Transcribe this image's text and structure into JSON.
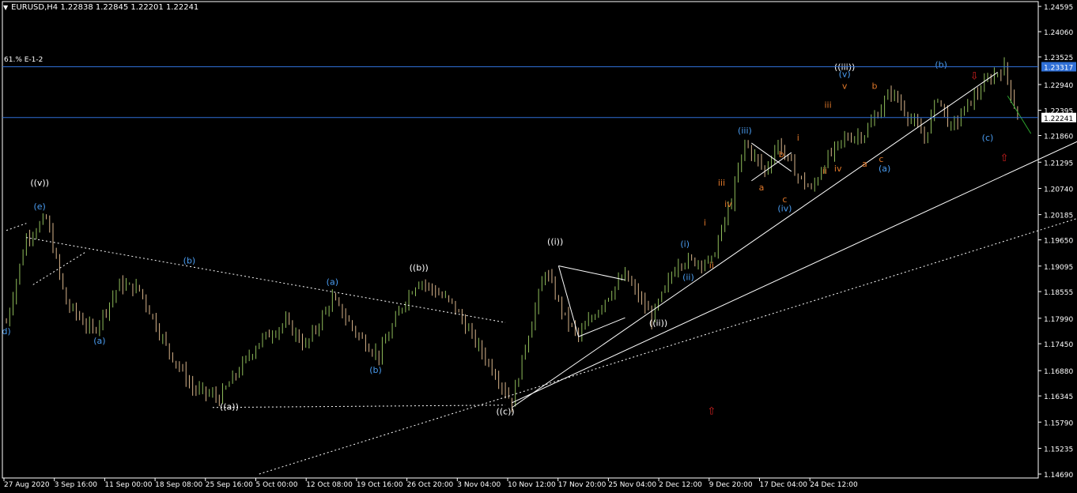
{
  "window": {
    "symbol_line": "EURUSD,H4  1.22838 1.22845 1.22201 1.22241",
    "fibo_label": "61.% E-1-2",
    "menu_icon": "triangle-down-icon"
  },
  "colors": {
    "background": "#000000",
    "bull_candle": "#8fbc5a",
    "bear_candle": "#d8b48a",
    "axis": "#ffffff",
    "hline": "#2f6fd6",
    "price_tag_blue": "#2f6fd6",
    "price_tag_white": "#ffffff",
    "label_white": "#ffffff",
    "label_blue": "#4a9cf0",
    "label_orange": "#e0782a",
    "arrow_red": "#d42020",
    "projection_green": "#2ea62e"
  },
  "chart_data": {
    "type": "candlestick",
    "symbol": "EURUSD",
    "timeframe": "H4",
    "ohlc_current": {
      "open": 1.22838,
      "high": 1.22845,
      "low": 1.22201,
      "close": 1.22241
    },
    "ylim": [
      1.1469,
      1.2463
    ],
    "y_ticks": [
      "1.24595",
      "1.24060",
      "1.23525",
      "1.22940",
      "1.22395",
      "1.21860",
      "1.21295",
      "1.20740",
      "1.20185",
      "1.19650",
      "1.19095",
      "1.18555",
      "1.17990",
      "1.17450",
      "1.16880",
      "1.16345",
      "1.15790",
      "1.15235",
      "1.14690"
    ],
    "x_ticks": [
      "27 Aug 2020",
      "3 Sep 16:00",
      "11 Sep 00:00",
      "18 Sep 08:00",
      "25 Sep 16:00",
      "5 Oct 00:00",
      "12 Oct 08:00",
      "19 Oct 16:00",
      "26 Oct 20:00",
      "3 Nov 04:00",
      "10 Nov 12:00",
      "17 Nov 20:00",
      "25 Nov 04:00",
      "2 Dec 12:00",
      "9 Dec 20:00",
      "17 Dec 04:00",
      "24 Dec 12:00"
    ],
    "price_tags": [
      {
        "value": 1.23317,
        "label": "1.23317",
        "style": "blue"
      },
      {
        "value": 1.22241,
        "label": "1.22241",
        "style": "white"
      }
    ],
    "hlines": [
      {
        "value": 1.23317
      },
      {
        "value": 1.22241
      }
    ],
    "price_path": [
      [
        1.179,
        0
      ],
      [
        1.197,
        6
      ],
      [
        1.201,
        12
      ],
      [
        1.183,
        18
      ],
      [
        1.177,
        26
      ],
      [
        1.187,
        34
      ],
      [
        1.186,
        40
      ],
      [
        1.174,
        48
      ],
      [
        1.165,
        56
      ],
      [
        1.163,
        64
      ],
      [
        1.175,
        76
      ],
      [
        1.179,
        84
      ],
      [
        1.174,
        90
      ],
      [
        1.184,
        98
      ],
      [
        1.176,
        106
      ],
      [
        1.172,
        112
      ],
      [
        1.184,
        120
      ],
      [
        1.188,
        124
      ],
      [
        1.183,
        134
      ],
      [
        1.176,
        140
      ],
      [
        1.167,
        148
      ],
      [
        1.162,
        152
      ],
      [
        1.174,
        156
      ],
      [
        1.19,
        162
      ],
      [
        1.18,
        168
      ],
      [
        1.176,
        172
      ],
      [
        1.184,
        180
      ],
      [
        1.189,
        186
      ],
      [
        1.18,
        194
      ],
      [
        1.192,
        202
      ],
      [
        1.192,
        212
      ],
      [
        1.205,
        218
      ],
      [
        1.217,
        222
      ],
      [
        1.211,
        228
      ],
      [
        1.217,
        232
      ],
      [
        1.21,
        238
      ],
      [
        1.207,
        242
      ],
      [
        1.213,
        246
      ],
      [
        1.218,
        252
      ],
      [
        1.219,
        258
      ],
      [
        1.228,
        266
      ],
      [
        1.222,
        272
      ],
      [
        1.218,
        276
      ],
      [
        1.227,
        280
      ],
      [
        1.22,
        284
      ],
      [
        1.226,
        290
      ],
      [
        1.231,
        296
      ],
      [
        1.233,
        300
      ],
      [
        1.2224,
        304
      ]
    ],
    "trendlines": [
      {
        "style": "dotted",
        "points": [
          [
            "x",
            0
          ],
          [
            1.1985,
            0
          ],
          [
            1.2,
            6
          ]
        ]
      },
      {
        "style": "dotted",
        "points": [
          [
            1.187,
            8
          ],
          [
            1.194,
            24
          ]
        ]
      },
      {
        "style": "dotted",
        "points": [
          [
            1.197,
            6
          ],
          [
            1.179,
            150
          ]
        ]
      },
      {
        "style": "dotted",
        "points": [
          [
            1.161,
            62
          ],
          [
            1.1615,
            150
          ]
        ]
      },
      {
        "style": "dotted",
        "points": [
          [
            1.1469,
            76
          ],
          [
            1.2015,
            324
          ]
        ]
      },
      {
        "style": "solid",
        "points": [
          [
            1.162,
            152
          ],
          [
            1.218,
            324
          ]
        ]
      },
      {
        "style": "solid",
        "points": [
          [
            1.161,
            152
          ],
          [
            1.232,
            298
          ]
        ]
      },
      {
        "style": "solid",
        "points": [
          [
            1.191,
            166
          ],
          [
            1.188,
            186
          ]
        ]
      },
      {
        "style": "solid",
        "points": [
          [
            1.176,
            172
          ],
          [
            1.18,
            186
          ]
        ]
      },
      {
        "style": "solid",
        "points": [
          [
            1.191,
            166
          ],
          [
            1.176,
            172
          ]
        ]
      },
      {
        "style": "solid",
        "points": [
          [
            1.217,
            224
          ],
          [
            1.211,
            236
          ]
        ]
      },
      {
        "style": "solid",
        "points": [
          [
            1.209,
            224
          ],
          [
            1.215,
            236
          ]
        ]
      }
    ],
    "projection": {
      "points": [
        [
          1.227,
          301
        ],
        [
          1.219,
          308
        ]
      ]
    },
    "wave_labels": [
      {
        "text": "((v))",
        "price": 1.208,
        "bar": 10,
        "color": "white"
      },
      {
        "text": "(e)",
        "price": 1.203,
        "bar": 10,
        "color": "blue"
      },
      {
        "text": "d)",
        "price": 1.1765,
        "bar": 0,
        "color": "blue"
      },
      {
        "text": "(a)",
        "price": 1.1745,
        "bar": 28,
        "color": "blue"
      },
      {
        "text": "(b)",
        "price": 1.1915,
        "bar": 55,
        "color": "blue"
      },
      {
        "text": "((a))",
        "price": 1.1605,
        "bar": 67,
        "color": "white"
      },
      {
        "text": "(a)",
        "price": 1.187,
        "bar": 98,
        "color": "blue"
      },
      {
        "text": "(b)",
        "price": 1.1683,
        "bar": 111,
        "color": "blue"
      },
      {
        "text": "((b))",
        "price": 1.19,
        "bar": 124,
        "color": "white"
      },
      {
        "text": "((c))",
        "price": 1.1595,
        "bar": 150,
        "color": "white"
      },
      {
        "text": "((i))",
        "price": 1.1955,
        "bar": 165,
        "color": "white"
      },
      {
        "text": "((ii))",
        "price": 1.1783,
        "bar": 196,
        "color": "white"
      },
      {
        "text": "(i)",
        "price": 1.195,
        "bar": 204,
        "color": "blue"
      },
      {
        "text": "(ii)",
        "price": 1.188,
        "bar": 205,
        "color": "blue"
      },
      {
        "text": "i",
        "price": 1.1995,
        "bar": 210,
        "color": "orange"
      },
      {
        "text": "ii",
        "price": 1.1905,
        "bar": 212,
        "color": "orange"
      },
      {
        "text": "iii",
        "price": 1.208,
        "bar": 215,
        "color": "orange"
      },
      {
        "text": "iv",
        "price": 1.2035,
        "bar": 217,
        "color": "orange"
      },
      {
        "text": "(iii)",
        "price": 1.219,
        "bar": 222,
        "color": "blue"
      },
      {
        "text": "a",
        "price": 1.207,
        "bar": 227,
        "color": "orange"
      },
      {
        "text": "b",
        "price": 1.214,
        "bar": 233,
        "color": "orange"
      },
      {
        "text": "c",
        "price": 1.2045,
        "bar": 234,
        "color": "orange"
      },
      {
        "text": "(iv)",
        "price": 1.2025,
        "bar": 234,
        "color": "blue"
      },
      {
        "text": "i",
        "price": 1.2175,
        "bar": 238,
        "color": "orange"
      },
      {
        "text": "ii",
        "price": 1.2105,
        "bar": 246,
        "color": "orange"
      },
      {
        "text": "iii",
        "price": 1.2245,
        "bar": 247,
        "color": "orange"
      },
      {
        "text": "iv",
        "price": 1.211,
        "bar": 250,
        "color": "orange"
      },
      {
        "text": "((iii))",
        "price": 1.2325,
        "bar": 252,
        "color": "white"
      },
      {
        "text": "(v)",
        "price": 1.231,
        "bar": 252,
        "color": "blue"
      },
      {
        "text": "v",
        "price": 1.2285,
        "bar": 252,
        "color": "orange"
      },
      {
        "text": "a",
        "price": 1.212,
        "bar": 258,
        "color": "orange"
      },
      {
        "text": "b",
        "price": 1.2285,
        "bar": 261,
        "color": "orange"
      },
      {
        "text": "c",
        "price": 1.213,
        "bar": 263,
        "color": "orange"
      },
      {
        "text": "(a)",
        "price": 1.211,
        "bar": 264,
        "color": "blue"
      },
      {
        "text": "(b)",
        "price": 1.233,
        "bar": 281,
        "color": "blue"
      },
      {
        "text": "(c)",
        "price": 1.2175,
        "bar": 295,
        "color": "blue"
      }
    ],
    "arrows": [
      {
        "direction": "down",
        "price": 1.2305,
        "bar": 291
      },
      {
        "direction": "up",
        "price": 1.2132,
        "bar": 300
      },
      {
        "direction": "up",
        "price": 1.1595,
        "bar": 212
      }
    ],
    "bar_count": 310
  }
}
